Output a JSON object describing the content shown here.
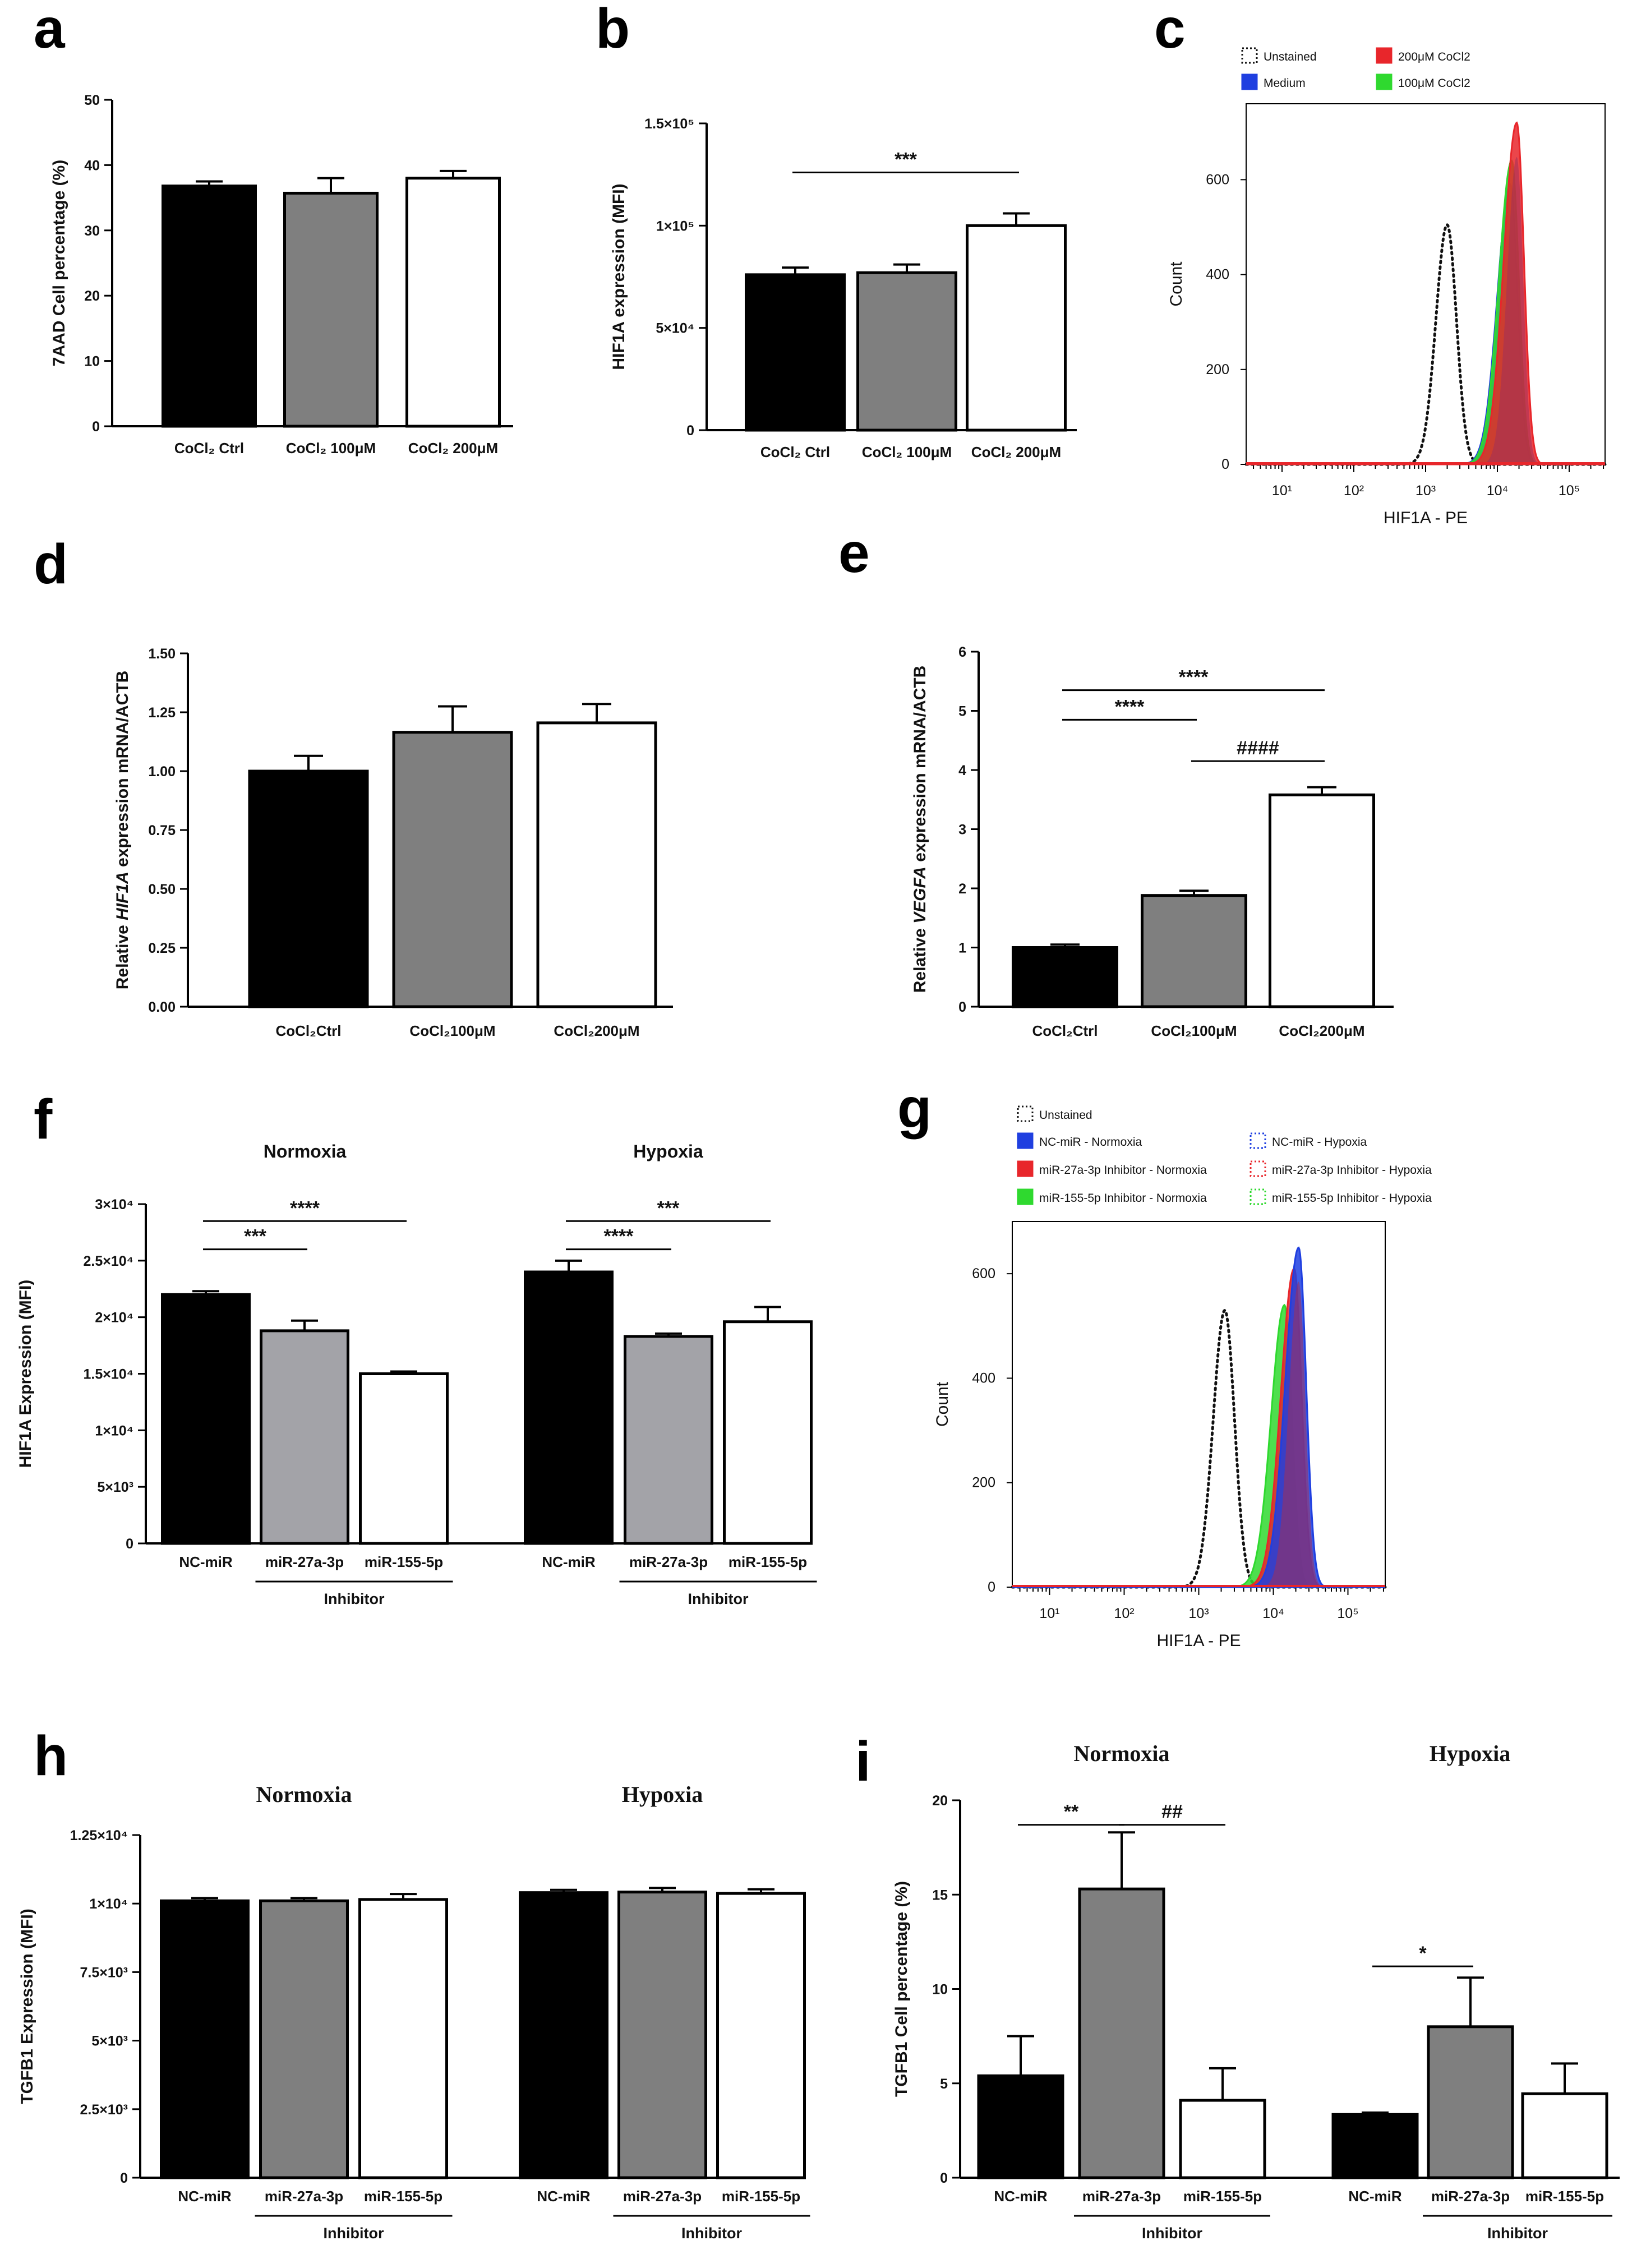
{
  "colors": {
    "black": "#000000",
    "dark_gray": "#7f7f7f",
    "light_gray": "#a3a3a8",
    "white": "#ffffff",
    "blue": "#1f3fe0",
    "red": "#e8262b",
    "green": "#2fd92f",
    "dark_red": "#a0305a"
  },
  "chart_data": [
    {
      "panel": "a",
      "type": "bar",
      "ylabel": "7AAD Cell percentage (%)",
      "categories": [
        "CoCl₂ Ctrl",
        "CoCl₂ 100μM",
        "CoCl₂ 200μM"
      ],
      "values": [
        36.8,
        35.7,
        38.0
      ],
      "errors": [
        0.7,
        2.3,
        1.1
      ],
      "ylim": [
        0,
        50
      ],
      "yticks": [
        0,
        10,
        20,
        30,
        40,
        50
      ],
      "ytick_labels": [
        "0",
        "10",
        "20",
        "30",
        "40",
        "50"
      ],
      "fills": [
        "black",
        "dark_gray",
        "white"
      ],
      "sig": []
    },
    {
      "panel": "b",
      "type": "bar",
      "ylabel": "HIF1A expression (MFI)",
      "categories": [
        "CoCl₂ Ctrl",
        "CoCl₂ 100μM",
        "CoCl₂ 200μM"
      ],
      "values": [
        76000,
        77000,
        100000
      ],
      "errors": [
        3500,
        4000,
        6000
      ],
      "ylim": [
        0,
        150000
      ],
      "yticks": [
        0,
        50000,
        100000,
        150000
      ],
      "ytick_labels": [
        "0",
        "5×10⁴",
        "1×10⁵",
        "1.5×10⁵"
      ],
      "fills": [
        "black",
        "dark_gray",
        "white"
      ],
      "sig": [
        {
          "from": 0,
          "to": 2,
          "label": "***",
          "y": 126000
        }
      ]
    },
    {
      "panel": "c",
      "type": "histogram",
      "xlabel": "HIF1A - PE",
      "ylabel": "Count",
      "ylim": [
        0,
        760
      ],
      "yticks": [
        0,
        200,
        400,
        600
      ],
      "ytick_labels": [
        "0",
        "200",
        "400",
        "600"
      ],
      "xtick_labels": [
        "10¹",
        "10²",
        "10³",
        "10⁴",
        "10⁵"
      ],
      "legend": [
        {
          "label": "Unstained",
          "style": "dotted"
        },
        {
          "label": "200μM CoCl2",
          "style": "red"
        },
        {
          "label": "Medium",
          "style": "blue"
        },
        {
          "label": "100μM CoCl2",
          "style": "green"
        }
      ],
      "series": [
        {
          "name": "Unstained",
          "peak_log": 3.3,
          "peak": 505
        },
        {
          "name": "Medium",
          "peak_log": 4.18,
          "peak": 590
        },
        {
          "name": "100μM CoCl2",
          "peak_log": 4.2,
          "peak": 640
        },
        {
          "name": "200μM CoCl2",
          "peak_log": 4.27,
          "peak": 720
        }
      ]
    },
    {
      "panel": "d",
      "type": "bar",
      "ylabel_parts": [
        "Relative ",
        "HIF1A",
        " expression mRNA/ACTB"
      ],
      "categories": [
        "CoCl₂Ctrl",
        "CoCl₂100μM",
        "CoCl₂200μM"
      ],
      "values": [
        1.0,
        1.165,
        1.205
      ],
      "errors": [
        0.065,
        0.11,
        0.08
      ],
      "ylim": [
        0,
        1.5
      ],
      "yticks": [
        0,
        0.25,
        0.5,
        0.75,
        1.0,
        1.25,
        1.5
      ],
      "ytick_labels": [
        "0.00",
        "0.25",
        "0.50",
        "0.75",
        "1.00",
        "1.25",
        "1.50"
      ],
      "fills": [
        "black",
        "dark_gray",
        "white"
      ],
      "sig": []
    },
    {
      "panel": "e",
      "type": "bar",
      "ylabel_parts": [
        "Relative ",
        "VEGFA",
        " expression mRNA/ACTB"
      ],
      "categories": [
        "CoCl₂Ctrl",
        "CoCl₂100μM",
        "CoCl₂200μM"
      ],
      "values": [
        1.0,
        1.88,
        3.58
      ],
      "errors": [
        0.05,
        0.08,
        0.13
      ],
      "ylim": [
        0,
        6
      ],
      "yticks": [
        0,
        1,
        2,
        3,
        4,
        5,
        6
      ],
      "ytick_labels": [
        "0",
        "1",
        "2",
        "3",
        "4",
        "5",
        "6"
      ],
      "fills": [
        "black",
        "dark_gray",
        "white"
      ],
      "sig": [
        {
          "from": 0,
          "to": 2,
          "label": "****",
          "y": 5.35
        },
        {
          "from": 0,
          "to": 1,
          "label": "****",
          "y": 4.85
        },
        {
          "from": 1,
          "to": 2,
          "label": "####",
          "y": 4.15
        }
      ]
    },
    {
      "panel": "f",
      "type": "grouped_bar",
      "ylabel": "HIF1A Expression (MFI)",
      "groups": [
        "Normoxia",
        "Hypoxia"
      ],
      "categories": [
        "NC-miR",
        "miR-27a-3p",
        "miR-155-5p"
      ],
      "inhibitor_label": "Inhibitor",
      "series": [
        {
          "group": "Normoxia",
          "values": [
            22000,
            18800,
            15000
          ],
          "errors": [
            300,
            900,
            200
          ]
        },
        {
          "group": "Hypoxia",
          "values": [
            24000,
            18300,
            19600
          ],
          "errors": [
            1000,
            250,
            1300
          ]
        }
      ],
      "ylim": [
        0,
        30000
      ],
      "yticks": [
        0,
        5000,
        10000,
        15000,
        20000,
        25000,
        30000
      ],
      "ytick_labels": [
        "0",
        "5×10³",
        "1×10⁴",
        "1.5×10⁴",
        "2×10⁴",
        "2.5×10⁴",
        "3×10⁴"
      ],
      "fills": [
        "black",
        "light_gray",
        "white"
      ],
      "sig": [
        {
          "group": 0,
          "from": 0,
          "to": 2,
          "label": "****",
          "y": 28500
        },
        {
          "group": 0,
          "from": 0,
          "to": 1,
          "label": "***",
          "y": 26000
        },
        {
          "group": 1,
          "from": 0,
          "to": 2,
          "label": "***",
          "y": 28500
        },
        {
          "group": 1,
          "from": 0,
          "to": 1,
          "label": "****",
          "y": 26000
        }
      ]
    },
    {
      "panel": "g",
      "type": "histogram",
      "xlabel": "HIF1A - PE",
      "ylabel": "Count",
      "ylim": [
        0,
        700
      ],
      "yticks": [
        0,
        200,
        400,
        600
      ],
      "ytick_labels": [
        "0",
        "200",
        "400",
        "600"
      ],
      "xtick_labels": [
        "10¹",
        "10²",
        "10³",
        "10⁴",
        "10⁵"
      ],
      "legend": [
        {
          "label": "Unstained",
          "style": "dotted"
        },
        {
          "label": "NC-miR - Normoxia",
          "style": "blue"
        },
        {
          "label": "NC-miR - Hypoxia",
          "style": "blue_dotted"
        },
        {
          "label": "miR-27a-3p Inhibitor - Normoxia",
          "style": "red"
        },
        {
          "label": "miR-27a-3p Inhibitor - Hypoxia",
          "style": "red_dotted"
        },
        {
          "label": "miR-155-5p Inhibitor - Normoxia",
          "style": "green"
        },
        {
          "label": "miR-155-5p Inhibitor - Hypoxia",
          "style": "green_dotted"
        }
      ],
      "series": [
        {
          "name": "Unstained",
          "peak_log": 3.35,
          "peak": 530
        },
        {
          "name": "miR-155-5p Inhibitor - Normoxia",
          "peak_log": 4.15,
          "peak": 540
        },
        {
          "name": "miR-27a-3p Inhibitor - Normoxia",
          "peak_log": 4.28,
          "peak": 610
        },
        {
          "name": "NC-miR - Normoxia",
          "peak_log": 4.34,
          "peak": 650
        }
      ]
    },
    {
      "panel": "h",
      "type": "grouped_bar",
      "ylabel": "TGFB1 Expression (MFI)",
      "groups": [
        "Normoxia",
        "Hypoxia"
      ],
      "categories": [
        "NC-miR",
        "miR-27a-3p",
        "miR-155-5p"
      ],
      "inhibitor_label": "Inhibitor",
      "series": [
        {
          "group": "Normoxia",
          "values": [
            10100,
            10100,
            10150
          ],
          "errors": [
            100,
            100,
            200
          ]
        },
        {
          "group": "Hypoxia",
          "values": [
            10400,
            10420,
            10370
          ],
          "errors": [
            100,
            150,
            150
          ]
        }
      ],
      "ylim": [
        0,
        12500
      ],
      "yticks": [
        0,
        2500,
        5000,
        7500,
        10000,
        12500
      ],
      "ytick_labels": [
        "0",
        "2.5×10³",
        "5×10³",
        "7.5×10³",
        "1×10⁴",
        "1.25×10⁴"
      ],
      "fills": [
        "black",
        "dark_gray",
        "white"
      ],
      "sig": []
    },
    {
      "panel": "i",
      "type": "grouped_bar",
      "ylabel": "TGFB1 Cell percentage (%)",
      "groups": [
        "Normoxia",
        "Hypoxia"
      ],
      "categories": [
        "NC-miR",
        "miR-27a-3p",
        "miR-155-5p"
      ],
      "inhibitor_label": "Inhibitor",
      "series": [
        {
          "group": "Normoxia",
          "values": [
            5.4,
            15.3,
            4.1
          ],
          "errors": [
            2.1,
            3.0,
            1.7
          ]
        },
        {
          "group": "Hypoxia",
          "values": [
            3.35,
            8.0,
            4.45
          ],
          "errors": [
            0.1,
            2.6,
            1.6
          ]
        }
      ],
      "ylim": [
        0,
        20
      ],
      "yticks": [
        0,
        5,
        10,
        15,
        20
      ],
      "ytick_labels": [
        "0",
        "5",
        "10",
        "15",
        "20"
      ],
      "fills": [
        "black",
        "dark_gray",
        "white"
      ],
      "sig": [
        {
          "group": 0,
          "from": 0,
          "to": 1,
          "label": "**",
          "y": 18.7
        },
        {
          "group": 0,
          "from": 1,
          "to": 2,
          "label": "##",
          "y": 18.7
        },
        {
          "group": 1,
          "from": 0,
          "to": 1,
          "label": "*",
          "y": 11.2
        }
      ]
    }
  ],
  "panel_labels": [
    "a",
    "b",
    "c",
    "d",
    "e",
    "f",
    "g",
    "h",
    "i"
  ]
}
